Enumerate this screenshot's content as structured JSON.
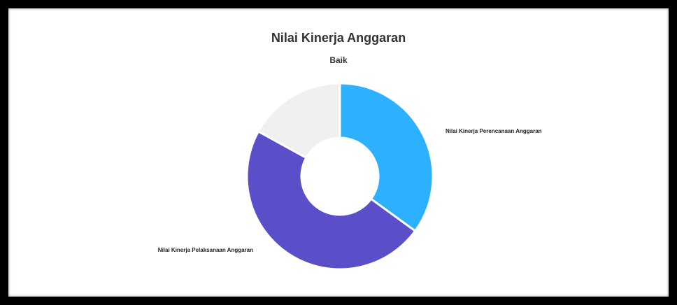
{
  "chart_data": {
    "type": "pie",
    "variant": "donut",
    "title": "Nilai Kinerja Anggaran",
    "subtitle": "Baik",
    "slices": [
      {
        "label": "Nilai Kinerja Perencanaan Anggaran",
        "value": 35,
        "color": "#2db1ff"
      },
      {
        "label": "Nilai Kinerja Pelaksanaan Anggaran",
        "value": 48,
        "color": "#5a4fc8"
      },
      {
        "label": "",
        "value": 17,
        "color": "#f0f0f0"
      }
    ],
    "legend": "none"
  }
}
